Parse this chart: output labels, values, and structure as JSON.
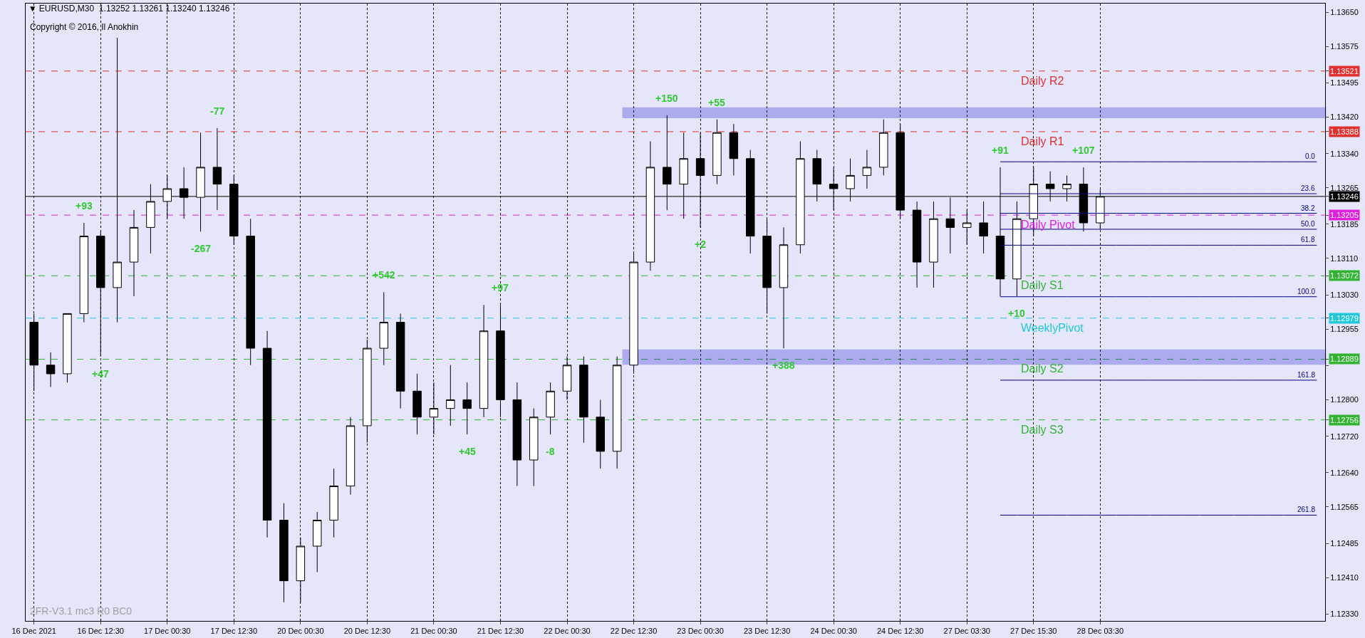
{
  "chart_data": {
    "type": "candlestick",
    "title": "▼ EURUSD,M30  1.13252 1.13261 1.13240 1.13246",
    "subtitle": "Copyright © 2016, Il Anokhin",
    "categories": [
      "16 Dec 2021",
      null,
      null,
      null,
      "16 Dec 12:30",
      null,
      null,
      null,
      "17 Dec 00:30",
      null,
      null,
      null,
      "17 Dec 12:30",
      null,
      null,
      null,
      "20 Dec 00:30",
      null,
      null,
      null,
      "20 Dec 12:30",
      null,
      null,
      null,
      "21 Dec 00:30",
      null,
      null,
      null,
      "21 Dec 12:30",
      null,
      null,
      null,
      "22 Dec 00:30",
      null,
      null,
      null,
      "22 Dec 12:30",
      null,
      null,
      null,
      "23 Dec 00:30",
      null,
      null,
      null,
      "23 Dec 12:30",
      null,
      null,
      null,
      "24 Dec 00:30",
      null,
      null,
      null,
      "24 Dec 12:30",
      null,
      null,
      null,
      "27 Dec 03:30",
      null,
      null,
      null,
      "27 Dec 15:30",
      null,
      null,
      null,
      "28 Dec 03:30",
      null,
      null,
      null,
      null,
      null,
      null,
      null,
      null,
      null,
      null,
      null,
      null,
      null
    ],
    "ohlc": [
      [
        1.1297,
        1.12989,
        1.12819,
        1.12876
      ],
      [
        1.12876,
        1.12904,
        1.12828,
        1.12857
      ],
      [
        1.12857,
        1.12989,
        1.12838,
        1.12989
      ],
      [
        1.12989,
        1.13188,
        1.1297,
        1.13159
      ],
      [
        1.13159,
        1.13169,
        1.12895,
        1.13046
      ],
      [
        1.13046,
        1.13594,
        1.1297,
        1.13102
      ],
      [
        1.13102,
        1.13216,
        1.13027,
        1.13178
      ],
      [
        1.13178,
        1.13273,
        1.13121,
        1.13235
      ],
      [
        1.13235,
        1.13292,
        1.13197,
        1.13263
      ],
      [
        1.13263,
        1.1331,
        1.13197,
        1.13244
      ],
      [
        1.13244,
        1.13386,
        1.13169,
        1.1331
      ],
      [
        1.1331,
        1.13396,
        1.13216,
        1.13273
      ],
      [
        1.13273,
        1.13292,
        1.1314,
        1.13159
      ],
      [
        1.13159,
        1.13197,
        1.12876,
        1.12913
      ],
      [
        1.12913,
        1.12951,
        1.12498,
        1.12536
      ],
      [
        1.12536,
        1.12573,
        1.12356,
        1.12403
      ],
      [
        1.12403,
        1.12498,
        1.12356,
        1.12479
      ],
      [
        1.12479,
        1.12554,
        1.12422,
        1.12536
      ],
      [
        1.12536,
        1.12649,
        1.12498,
        1.12611
      ],
      [
        1.12611,
        1.12762,
        1.12592,
        1.12743
      ],
      [
        1.12743,
        1.12932,
        1.12706,
        1.12913
      ],
      [
        1.12913,
        1.13036,
        1.12876,
        1.1297
      ],
      [
        1.1297,
        1.12989,
        1.12781,
        1.12819
      ],
      [
        1.12819,
        1.12857,
        1.12724,
        1.12762
      ],
      [
        1.12762,
        1.12838,
        1.12724,
        1.12781
      ],
      [
        1.12781,
        1.12876,
        1.12743,
        1.128
      ],
      [
        1.128,
        1.12838,
        1.12724,
        1.12781
      ],
      [
        1.12781,
        1.13008,
        1.12762,
        1.12951
      ],
      [
        1.12951,
        1.13008,
        1.12762,
        1.128
      ],
      [
        1.128,
        1.12838,
        1.12611,
        1.12668
      ],
      [
        1.12668,
        1.12781,
        1.12611,
        1.12762
      ],
      [
        1.12762,
        1.12838,
        1.12724,
        1.12819
      ],
      [
        1.12819,
        1.12895,
        1.128,
        1.12876
      ],
      [
        1.12876,
        1.12895,
        1.12706,
        1.12762
      ],
      [
        1.12762,
        1.128,
        1.12649,
        1.12687
      ],
      [
        1.12687,
        1.12895,
        1.12649,
        1.12876
      ],
      [
        1.12876,
        1.13121,
        1.12857,
        1.13102
      ],
      [
        1.13102,
        1.13367,
        1.13083,
        1.1331
      ],
      [
        1.1331,
        1.13424,
        1.13216,
        1.13273
      ],
      [
        1.13273,
        1.13386,
        1.13197,
        1.13329
      ],
      [
        1.13329,
        1.13386,
        1.13178,
        1.13292
      ],
      [
        1.13292,
        1.13415,
        1.13273,
        1.13386
      ],
      [
        1.13386,
        1.13405,
        1.13292,
        1.13329
      ],
      [
        1.13329,
        1.13348,
        1.13121,
        1.13159
      ],
      [
        1.13159,
        1.13197,
        1.12989,
        1.13046
      ],
      [
        1.13046,
        1.13178,
        1.12913,
        1.1314
      ],
      [
        1.1314,
        1.13367,
        1.13121,
        1.13329
      ],
      [
        1.13329,
        1.13348,
        1.13235,
        1.13273
      ],
      [
        1.13273,
        1.1331,
        1.13216,
        1.13263
      ],
      [
        1.13263,
        1.13329,
        1.13235,
        1.13292
      ],
      [
        1.13292,
        1.13348,
        1.13263,
        1.1331
      ],
      [
        1.1331,
        1.13415,
        1.13292,
        1.13386
      ],
      [
        1.13386,
        1.13405,
        1.13197,
        1.13216
      ],
      [
        1.13216,
        1.13235,
        1.13046,
        1.13102
      ],
      [
        1.13102,
        1.13235,
        1.13046,
        1.13197
      ],
      [
        1.13197,
        1.13244,
        1.13121,
        1.13178
      ],
      [
        1.13178,
        1.13216,
        1.1314,
        1.13188
      ],
      [
        1.13188,
        1.13235,
        1.13121,
        1.13159
      ],
      [
        1.13159,
        1.1331,
        1.13027,
        1.13065
      ],
      [
        1.13065,
        1.13235,
        1.13027,
        1.13197
      ],
      [
        1.13197,
        1.1331,
        1.13159,
        1.13273
      ],
      [
        1.13273,
        1.13301,
        1.13235,
        1.13263
      ],
      [
        1.13263,
        1.13292,
        1.13235,
        1.13273
      ],
      [
        1.13273,
        1.1331,
        1.13169,
        1.13188
      ],
      [
        1.13188,
        1.13261,
        1.13174,
        1.13246
      ],
      null,
      null,
      null,
      null,
      null,
      null,
      null,
      null,
      null,
      null,
      null,
      null,
      null
    ],
    "value_labels": [
      null,
      null,
      null,
      "+93",
      "+47",
      null,
      null,
      null,
      null,
      null,
      "-267",
      "-77",
      null,
      null,
      null,
      null,
      null,
      null,
      null,
      null,
      null,
      "+542",
      null,
      null,
      null,
      null,
      "+45",
      null,
      "+97",
      null,
      null,
      "-8",
      null,
      null,
      null,
      null,
      null,
      null,
      "+150",
      null,
      "+2",
      "+55",
      null,
      null,
      null,
      "+388",
      null,
      null,
      null,
      null,
      null,
      null,
      null,
      null,
      null,
      null,
      null,
      null,
      "+91",
      "+10",
      null,
      null,
      null,
      "+107",
      null,
      null,
      null,
      null,
      null,
      null,
      null,
      null,
      null,
      null,
      null,
      null,
      null,
      null
    ],
    "ref_lines": [
      {
        "axis": "y",
        "value": 1.13521,
        "label": "Daily R2",
        "color": "#e03030",
        "line_style": "dashed"
      },
      {
        "axis": "y",
        "value": 1.13388,
        "label": "Daily R1",
        "color": "#e03030",
        "line_style": "dashed"
      },
      {
        "axis": "y",
        "value": 1.13246,
        "label": null,
        "color": "#000000",
        "line_style": "solid"
      },
      {
        "axis": "y",
        "value": 1.13205,
        "label": "Daily Pivot",
        "color": "#e020e0",
        "line_style": "dashed"
      },
      {
        "axis": "y",
        "value": 1.13072,
        "label": "Daily S1",
        "color": "#32b432",
        "line_style": "dashed"
      },
      {
        "axis": "y",
        "value": 1.12979,
        "label": "WeeklyPivot",
        "color": "#20c8d8",
        "line_style": "dashed"
      },
      {
        "axis": "y",
        "value": 1.12889,
        "label": "Daily S2",
        "color": "#32b432",
        "line_style": "dashed"
      },
      {
        "axis": "y",
        "value": 1.12756,
        "label": "Daily S3",
        "color": "#32b432",
        "line_style": "dashed"
      }
    ],
    "series": [
      {
        "type": "line",
        "name": "0.0",
        "color": "#000080",
        "values": [
          null,
          null,
          null,
          null,
          null,
          null,
          null,
          null,
          null,
          null,
          null,
          null,
          null,
          null,
          null,
          null,
          null,
          null,
          null,
          null,
          null,
          null,
          null,
          null,
          null,
          null,
          null,
          null,
          null,
          null,
          null,
          null,
          null,
          null,
          null,
          null,
          null,
          null,
          null,
          null,
          null,
          null,
          null,
          null,
          null,
          null,
          null,
          null,
          null,
          null,
          null,
          null,
          null,
          null,
          null,
          null,
          null,
          null,
          1.13322,
          1.13322,
          1.13322,
          1.13322,
          1.13322,
          1.13322,
          1.13322,
          1.13322,
          1.13322,
          1.13322,
          1.13322,
          1.13322,
          1.13322,
          1.13322,
          1.13322,
          1.13322,
          1.13322,
          1.13322,
          1.13322,
          1.13322
        ]
      },
      {
        "type": "line",
        "name": "23.6",
        "color": "#000080",
        "values": [
          null,
          null,
          null,
          null,
          null,
          null,
          null,
          null,
          null,
          null,
          null,
          null,
          null,
          null,
          null,
          null,
          null,
          null,
          null,
          null,
          null,
          null,
          null,
          null,
          null,
          null,
          null,
          null,
          null,
          null,
          null,
          null,
          null,
          null,
          null,
          null,
          null,
          null,
          null,
          null,
          null,
          null,
          null,
          null,
          null,
          null,
          null,
          null,
          null,
          null,
          null,
          null,
          null,
          null,
          null,
          null,
          null,
          null,
          1.13252,
          1.13252,
          1.13252,
          1.13252,
          1.13252,
          1.13252,
          1.13252,
          1.13252,
          1.13252,
          1.13252,
          1.13252,
          1.13252,
          1.13252,
          1.13252,
          1.13252,
          1.13252,
          1.13252,
          1.13252,
          1.13252,
          1.13252
        ]
      },
      {
        "type": "line",
        "name": "38.2",
        "color": "#000080",
        "values": [
          null,
          null,
          null,
          null,
          null,
          null,
          null,
          null,
          null,
          null,
          null,
          null,
          null,
          null,
          null,
          null,
          null,
          null,
          null,
          null,
          null,
          null,
          null,
          null,
          null,
          null,
          null,
          null,
          null,
          null,
          null,
          null,
          null,
          null,
          null,
          null,
          null,
          null,
          null,
          null,
          null,
          null,
          null,
          null,
          null,
          null,
          null,
          null,
          null,
          null,
          null,
          null,
          null,
          null,
          null,
          null,
          null,
          null,
          1.13209,
          1.13209,
          1.13209,
          1.13209,
          1.13209,
          1.13209,
          1.13209,
          1.13209,
          1.13209,
          1.13209,
          1.13209,
          1.13209,
          1.13209,
          1.13209,
          1.13209,
          1.13209,
          1.13209,
          1.13209,
          1.13209,
          1.13209
        ]
      },
      {
        "type": "line",
        "name": "50.0",
        "color": "#000080",
        "values": [
          null,
          null,
          null,
          null,
          null,
          null,
          null,
          null,
          null,
          null,
          null,
          null,
          null,
          null,
          null,
          null,
          null,
          null,
          null,
          null,
          null,
          null,
          null,
          null,
          null,
          null,
          null,
          null,
          null,
          null,
          null,
          null,
          null,
          null,
          null,
          null,
          null,
          null,
          null,
          null,
          null,
          null,
          null,
          null,
          null,
          null,
          null,
          null,
          null,
          null,
          null,
          null,
          null,
          null,
          null,
          null,
          null,
          null,
          1.13174,
          1.13174,
          1.13174,
          1.13174,
          1.13174,
          1.13174,
          1.13174,
          1.13174,
          1.13174,
          1.13174,
          1.13174,
          1.13174,
          1.13174,
          1.13174,
          1.13174,
          1.13174,
          1.13174,
          1.13174,
          1.13174,
          1.13174
        ]
      },
      {
        "type": "line",
        "name": "61.8",
        "color": "#000080",
        "values": [
          null,
          null,
          null,
          null,
          null,
          null,
          null,
          null,
          null,
          null,
          null,
          null,
          null,
          null,
          null,
          null,
          null,
          null,
          null,
          null,
          null,
          null,
          null,
          null,
          null,
          null,
          null,
          null,
          null,
          null,
          null,
          null,
          null,
          null,
          null,
          null,
          null,
          null,
          null,
          null,
          null,
          null,
          null,
          null,
          null,
          null,
          null,
          null,
          null,
          null,
          null,
          null,
          null,
          null,
          null,
          null,
          null,
          null,
          1.13139,
          1.13139,
          1.13139,
          1.13139,
          1.13139,
          1.13139,
          1.13139,
          1.13139,
          1.13139,
          1.13139,
          1.13139,
          1.13139,
          1.13139,
          1.13139,
          1.13139,
          1.13139,
          1.13139,
          1.13139,
          1.13139,
          1.13139
        ]
      },
      {
        "type": "line",
        "name": "100.0",
        "color": "#000080",
        "values": [
          null,
          null,
          null,
          null,
          null,
          null,
          null,
          null,
          null,
          null,
          null,
          null,
          null,
          null,
          null,
          null,
          null,
          null,
          null,
          null,
          null,
          null,
          null,
          null,
          null,
          null,
          null,
          null,
          null,
          null,
          null,
          null,
          null,
          null,
          null,
          null,
          null,
          null,
          null,
          null,
          null,
          null,
          null,
          null,
          null,
          null,
          null,
          null,
          null,
          null,
          null,
          null,
          null,
          null,
          null,
          null,
          null,
          null,
          1.13026,
          1.13026,
          1.13026,
          1.13026,
          1.13026,
          1.13026,
          1.13026,
          1.13026,
          1.13026,
          1.13026,
          1.13026,
          1.13026,
          1.13026,
          1.13026,
          1.13026,
          1.13026,
          1.13026,
          1.13026,
          1.13026,
          1.13026
        ]
      },
      {
        "type": "line",
        "name": "161.8",
        "color": "#000080",
        "values": [
          null,
          null,
          null,
          null,
          null,
          null,
          null,
          null,
          null,
          null,
          null,
          null,
          null,
          null,
          null,
          null,
          null,
          null,
          null,
          null,
          null,
          null,
          null,
          null,
          null,
          null,
          null,
          null,
          null,
          null,
          null,
          null,
          null,
          null,
          null,
          null,
          null,
          null,
          null,
          null,
          null,
          null,
          null,
          null,
          null,
          null,
          null,
          null,
          null,
          null,
          null,
          null,
          null,
          null,
          null,
          null,
          null,
          null,
          1.12843,
          1.12843,
          1.12843,
          1.12843,
          1.12843,
          1.12843,
          1.12843,
          1.12843,
          1.12843,
          1.12843,
          1.12843,
          1.12843,
          1.12843,
          1.12843,
          1.12843,
          1.12843,
          1.12843,
          1.12843,
          1.12843,
          1.12843
        ]
      },
      {
        "type": "line",
        "name": "261.8",
        "color": "#000080",
        "values": [
          null,
          null,
          null,
          null,
          null,
          null,
          null,
          null,
          null,
          null,
          null,
          null,
          null,
          null,
          null,
          null,
          null,
          null,
          null,
          null,
          null,
          null,
          null,
          null,
          null,
          null,
          null,
          null,
          null,
          null,
          null,
          null,
          null,
          null,
          null,
          null,
          null,
          null,
          null,
          null,
          null,
          null,
          null,
          null,
          null,
          null,
          null,
          null,
          null,
          null,
          null,
          null,
          null,
          null,
          null,
          null,
          null,
          null,
          1.12547,
          1.12547,
          1.12547,
          1.12547,
          1.12547,
          1.12547,
          1.12547,
          1.12547,
          1.12547,
          1.12547,
          1.12547,
          1.12547,
          1.12547,
          1.12547,
          1.12547,
          1.12547,
          1.12547,
          1.12547,
          1.12547,
          1.12547
        ]
      }
    ],
    "bands": [
      {
        "axis": "y",
        "from": 1.1342,
        "to": 1.13439,
        "color": "#0000cd"
      },
      {
        "axis": "y",
        "from": 1.12879,
        "to": 1.12908,
        "color": "#0000cd"
      }
    ],
    "annotations": [
      "2FR-V3.1 mc3 R0 BC0"
    ],
    "ylim": [
      1.12315,
      1.13669
    ],
    "yticks": [
      {
        "value": 1.1365,
        "label": "1.13650"
      },
      {
        "value": 1.13575,
        "label": "1.13575"
      },
      {
        "value": 1.13521,
        "label": "1.13521"
      },
      {
        "value": 1.13495,
        "label": "1.13495"
      },
      {
        "value": 1.1342,
        "label": "1.13420"
      },
      {
        "value": 1.13388,
        "label": "1.13388"
      },
      {
        "value": 1.1334,
        "label": "1.13340"
      },
      {
        "value": 1.13265,
        "label": "1.13265"
      },
      {
        "value": 1.13246,
        "label": "1.13246"
      },
      {
        "value": 1.13205,
        "label": "1.13205"
      },
      {
        "value": 1.13185,
        "label": "1.13185"
      },
      {
        "value": 1.1311,
        "label": "1.13110"
      },
      {
        "value": 1.13072,
        "label": "1.13072"
      },
      {
        "value": 1.1303,
        "label": "1.13030"
      },
      {
        "value": 1.12979,
        "label": "1.12979"
      },
      {
        "value": 1.12955,
        "label": "1.12955"
      },
      {
        "value": 1.12889,
        "label": "1.12889"
      },
      {
        "value": 1.12875,
        "label": null
      },
      {
        "value": 1.128,
        "label": "1.12800"
      },
      {
        "value": 1.12756,
        "label": "1.12756"
      },
      {
        "value": 1.1272,
        "label": "1.12720"
      },
      {
        "value": 1.1264,
        "label": "1.12640"
      },
      {
        "value": 1.12565,
        "label": "1.12565"
      },
      {
        "value": 1.12485,
        "label": "1.12485"
      },
      {
        "value": 1.1241,
        "label": "1.12410"
      },
      {
        "value": 1.1233,
        "label": "1.12330"
      }
    ],
    "grid": "x"
  }
}
